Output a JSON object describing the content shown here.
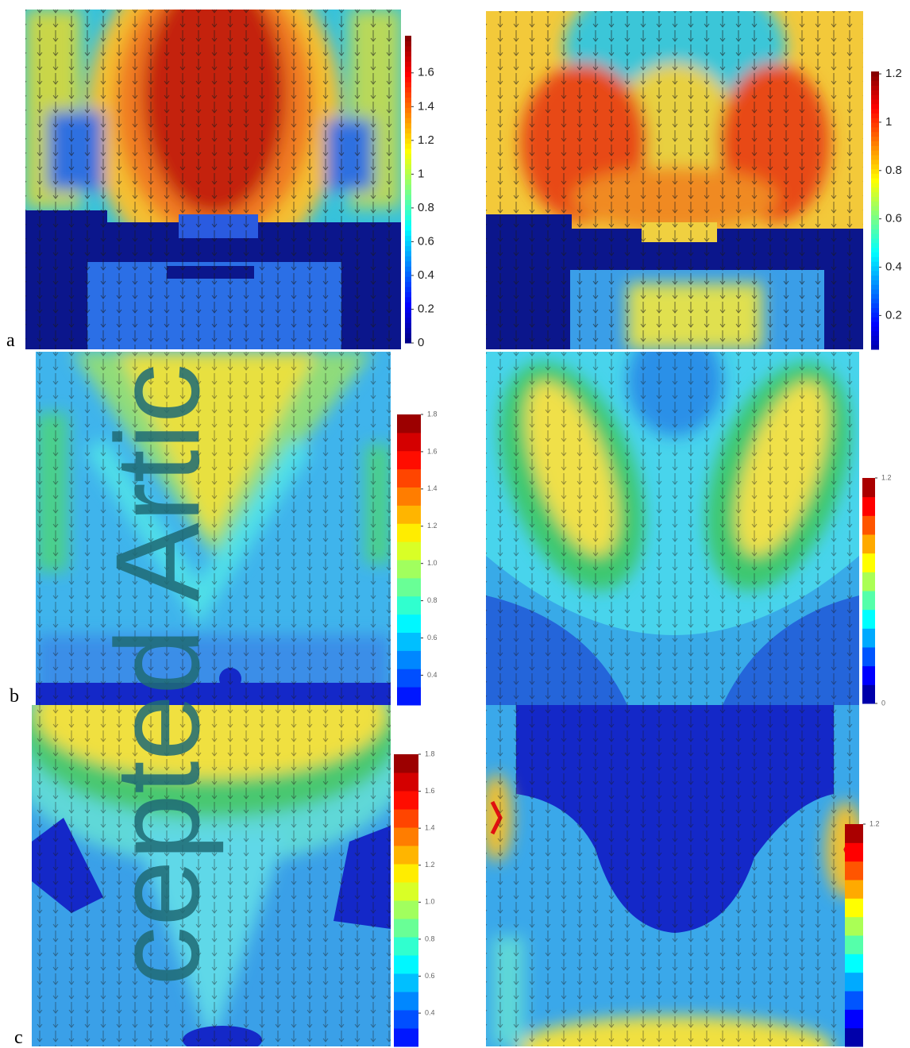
{
  "rows": [
    {
      "label": "a",
      "plots": [
        {
          "ylim": [
            0,
            1.82
          ],
          "yticks": [
            0,
            0.2,
            0.4,
            0.6,
            0.8,
            1,
            1.2,
            1.4,
            1.6
          ]
        },
        {
          "ylim": [
            0.06,
            1.21
          ],
          "yticks": [
            0.2,
            0.4,
            0.6,
            0.8,
            1,
            1.2
          ]
        }
      ]
    },
    {
      "label": "b",
      "plots": [
        {
          "ylim": [
            0.24,
            1.8
          ],
          "yticks": [
            0.4,
            0.6,
            0.8,
            {
              "value": 1,
              "label": "1.0"
            },
            1.2,
            1.4,
            1.6,
            1.8
          ]
        },
        {
          "ylim": [
            0,
            1.2
          ],
          "yticks": [
            0,
            1.2
          ]
        }
      ]
    },
    {
      "label": "c",
      "plots": [
        {
          "ylim": [
            0.22,
            1.8
          ],
          "yticks": [
            0.4,
            0.6,
            0.8,
            {
              "value": 1,
              "label": "1.0"
            },
            1.2,
            1.4,
            1.6,
            1.8
          ]
        },
        {
          "ylim": [
            0,
            1.2
          ],
          "yticks": [
            1.2
          ]
        }
      ]
    }
  ],
  "watermark": "cepted Artic"
}
